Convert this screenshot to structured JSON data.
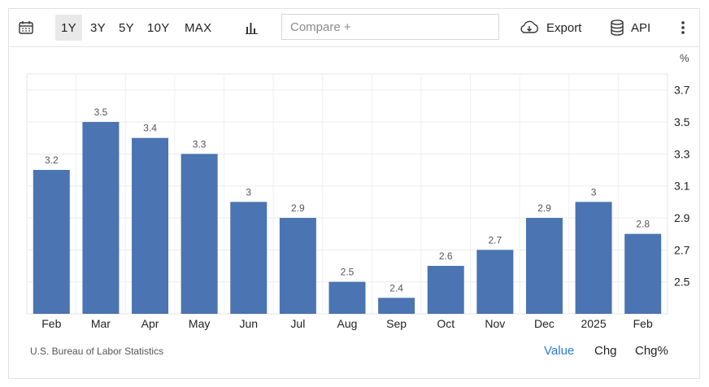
{
  "toolbar": {
    "ranges": [
      {
        "label": "1Y",
        "active": true
      },
      {
        "label": "3Y",
        "active": false
      },
      {
        "label": "5Y",
        "active": false
      },
      {
        "label": "10Y",
        "active": false
      },
      {
        "label": "MAX",
        "active": false
      }
    ],
    "compare_placeholder": "Compare +",
    "export_label": "Export",
    "api_label": "API",
    "icons": [
      "calendar-icon",
      "bar-chart-icon",
      "cloud-download-icon",
      "database-icon",
      "more-vertical-icon"
    ]
  },
  "chart_data": {
    "type": "bar",
    "unit": "%",
    "categories": [
      "Feb",
      "Mar",
      "Apr",
      "May",
      "Jun",
      "Jul",
      "Aug",
      "Sep",
      "Oct",
      "Nov",
      "Dec",
      "2025",
      "Feb"
    ],
    "values": [
      3.2,
      3.5,
      3.4,
      3.3,
      3,
      2.9,
      2.5,
      2.4,
      2.6,
      2.7,
      2.9,
      3,
      2.8
    ],
    "data_labels": [
      "3.2",
      "3.5",
      "3.4",
      "3.3",
      "3",
      "2.9",
      "2.5",
      "2.4",
      "2.6",
      "2.7",
      "2.9",
      "3",
      "2.8"
    ],
    "y_ticks": [
      2.5,
      2.7,
      2.9,
      3.1,
      3.3,
      3.5,
      3.7
    ],
    "y_tick_labels": [
      "2.5",
      "2.7",
      "2.9",
      "3.1",
      "3.3",
      "3.5",
      "3.7"
    ],
    "ylim": [
      2.3,
      3.8
    ],
    "y_axis_position": "right",
    "grid": true,
    "bar_color": "#4a74b2",
    "title": "",
    "xlabel": "",
    "ylabel": ""
  },
  "footer": {
    "source": "U.S. Bureau of Labor Statistics",
    "modes": [
      {
        "label": "Value",
        "active": true
      },
      {
        "label": "Chg",
        "active": false
      },
      {
        "label": "Chg%",
        "active": false
      }
    ],
    "active_color": "#2b7bd6"
  }
}
